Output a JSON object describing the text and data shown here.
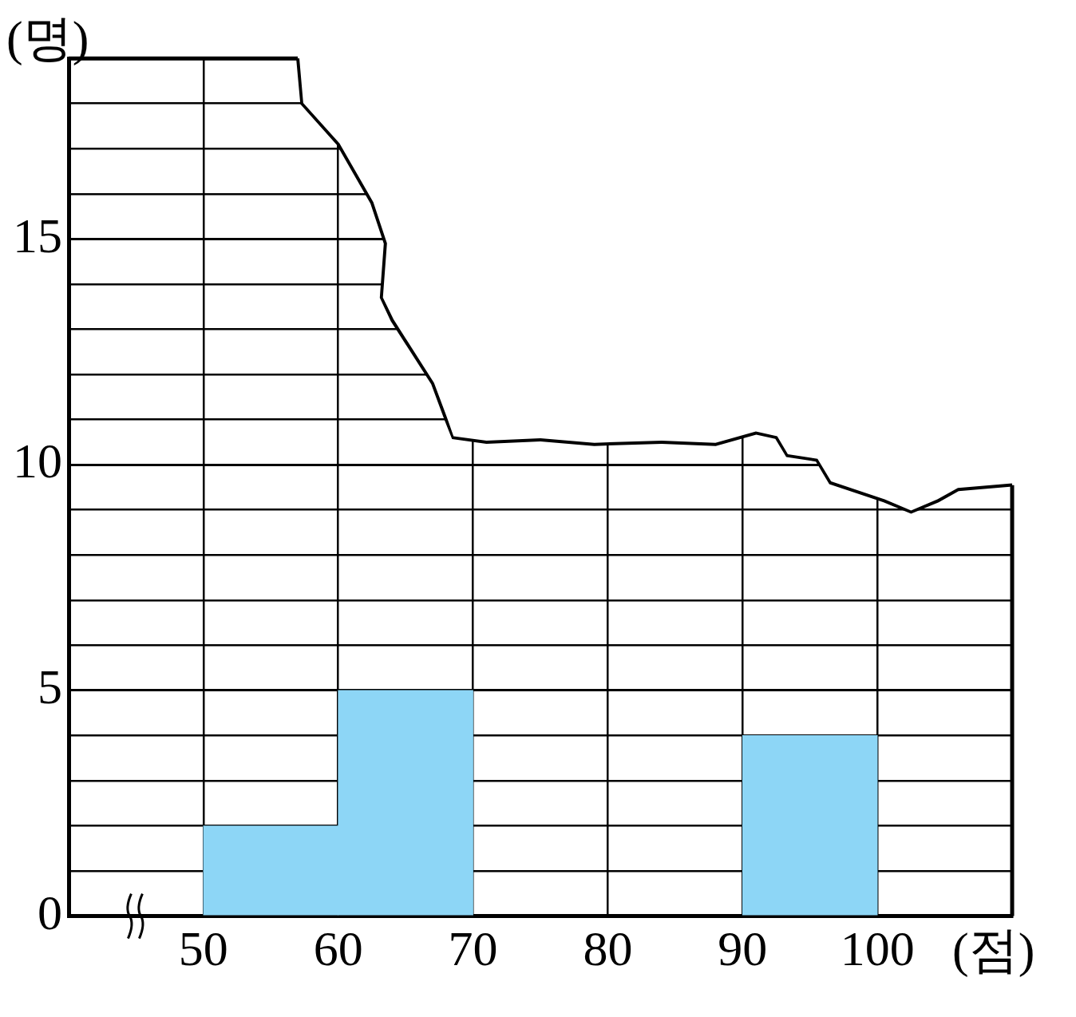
{
  "chart_data": {
    "type": "histogram",
    "bins": [
      50,
      60,
      70,
      80,
      90,
      100
    ],
    "values": [
      2,
      5,
      null,
      null,
      4
    ],
    "color": "#8dd6f6",
    "xlabel": "(점)",
    "ylabel": "(명)",
    "xlim": [
      40,
      110
    ],
    "xticks": [
      50,
      60,
      70,
      80,
      90,
      100
    ],
    "ylim": [
      0,
      19
    ],
    "yticks": [
      0,
      {
        "value": 1,
        "label": null
      },
      {
        "value": 2,
        "label": null
      },
      {
        "value": 3,
        "label": null
      },
      {
        "value": 4,
        "label": null
      },
      5,
      {
        "value": 6,
        "label": null
      },
      {
        "value": 7,
        "label": null
      },
      {
        "value": 8,
        "label": null
      },
      {
        "value": 9,
        "label": null
      },
      10,
      {
        "value": 11,
        "label": null
      },
      {
        "value": 12,
        "label": null
      },
      {
        "value": 13,
        "label": null
      },
      {
        "value": 14,
        "label": null
      },
      15,
      {
        "value": 16,
        "label": null
      },
      {
        "value": 17,
        "label": null
      },
      {
        "value": 18,
        "label": null
      },
      {
        "value": 19,
        "label": null
      }
    ],
    "grid": true,
    "legend": false
  }
}
